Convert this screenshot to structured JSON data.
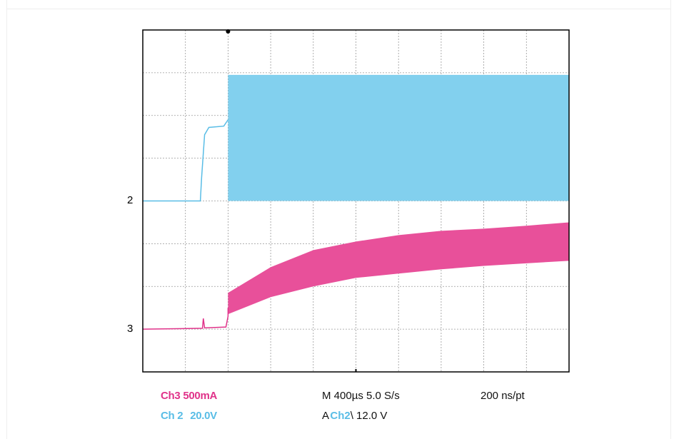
{
  "colors": {
    "ch2": "#59bde6",
    "ch2_fill": "#82d0ee",
    "ch3": "#e0338a",
    "ch3_fill": "#e8509a",
    "grid": "#999999",
    "frame": "#000000",
    "text": "#111111"
  },
  "channels": {
    "ch3_name": "Ch3",
    "ch3_scale": "500mA",
    "ch2_name": "Ch 2",
    "ch2_scale": "20.0V"
  },
  "markers": {
    "ch2": "2",
    "ch3": "3"
  },
  "timebase": {
    "text": "M 400µs 5.0 S/s",
    "resolution": "200 ns/pt"
  },
  "trigger": {
    "prefix": "A",
    "source": "Ch2",
    "slope_and_level": "\\ 12.0 V"
  },
  "chart_data": {
    "type": "line",
    "divisions": {
      "horizontal": 10,
      "vertical": 8
    },
    "grid": true,
    "x_range_div": [
      0,
      10
    ],
    "y_range_div": [
      0,
      8
    ],
    "series": [
      {
        "name": "Ch 2",
        "baseline_div": 4.0,
        "trace": [
          [
            0,
            4.0
          ],
          [
            1.35,
            4.0
          ],
          [
            1.38,
            4.55
          ],
          [
            1.45,
            5.55
          ],
          [
            1.55,
            5.72
          ],
          [
            1.9,
            5.75
          ],
          [
            2.0,
            5.9
          ]
        ],
        "envelope": {
          "x_start": 2.0,
          "x_end": 10.0,
          "low_div": 4.0,
          "high_div": 6.95
        }
      },
      {
        "name": "Ch3",
        "baseline_div": 1.0,
        "trace": [
          [
            0,
            1.0
          ],
          [
            1.4,
            1.02
          ],
          [
            1.42,
            1.25
          ],
          [
            1.45,
            1.03
          ],
          [
            1.95,
            1.05
          ],
          [
            2.0,
            1.3
          ],
          [
            2.0,
            1.5
          ]
        ],
        "envelope": {
          "x": [
            2.0,
            3.0,
            4.0,
            5.0,
            6.0,
            7.0,
            8.0,
            9.0,
            10.0
          ],
          "low_div": [
            1.35,
            1.75,
            2.0,
            2.2,
            2.3,
            2.4,
            2.48,
            2.54,
            2.6
          ],
          "high_div": [
            1.85,
            2.45,
            2.85,
            3.05,
            3.2,
            3.3,
            3.35,
            3.42,
            3.5
          ]
        }
      }
    ]
  }
}
